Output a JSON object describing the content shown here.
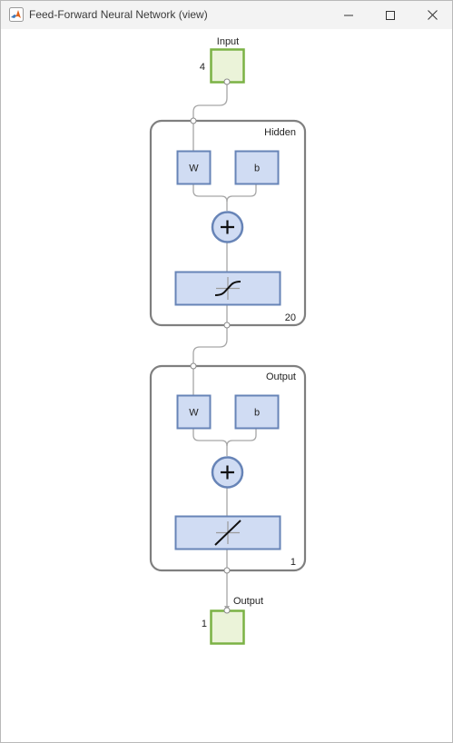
{
  "window": {
    "title": "Feed-Forward Neural Network (view)",
    "app_icon": "matlab-icon",
    "controls": [
      "minimize-icon",
      "maximize-icon",
      "close-icon"
    ]
  },
  "network": {
    "input": {
      "label": "Input",
      "size": "4"
    },
    "hidden": {
      "label": "Hidden",
      "size": "20",
      "weight_label": "W",
      "bias_label": "b",
      "sum_icon": "plus-icon",
      "transfer_icon": "tansig-icon"
    },
    "output_layer": {
      "label": "Output",
      "size": "1",
      "weight_label": "W",
      "bias_label": "b",
      "sum_icon": "plus-icon",
      "transfer_icon": "purelin-icon"
    },
    "output": {
      "label": "Output",
      "size": "1"
    }
  },
  "colors": {
    "io_fill": "#ebf3d9",
    "io_stroke": "#7bb245",
    "block_fill": "#d0dcf3",
    "block_stroke": "#6784b7",
    "layer_stroke": "#7f7f7f",
    "wire": "#a6a6a6"
  }
}
